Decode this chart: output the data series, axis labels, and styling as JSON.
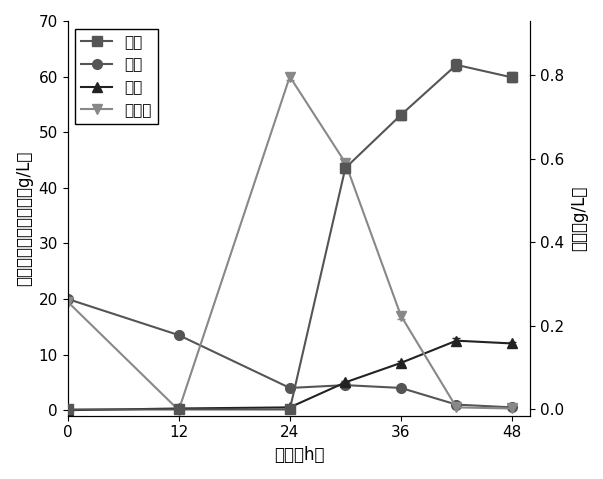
{
  "title": "",
  "xlabel": "时间（h）",
  "ylabel_left": "甘油／乙醇／葡萄糖（g/L）",
  "ylabel_right": "肌醇（g/L）",
  "xlim": [
    0,
    50
  ],
  "ylim_left": [
    -1,
    70
  ],
  "ylim_right": [
    -0.015,
    0.93
  ],
  "yticks_left": [
    0,
    10,
    20,
    30,
    40,
    50,
    60,
    70
  ],
  "yticks_right": [
    0.0,
    0.2,
    0.4,
    0.6,
    0.8
  ],
  "xticks": [
    0,
    12,
    24,
    36,
    48
  ],
  "series": {
    "肌醇": {
      "x": [
        0,
        12,
        24,
        30,
        36,
        42,
        48
      ],
      "y": [
        0.0,
        0.0,
        0.0,
        0.578,
        0.705,
        0.825,
        0.795
      ],
      "yerr": [
        0.0,
        0.0,
        0.0,
        0.012,
        0.012,
        0.015,
        0.012
      ],
      "color": "#555555",
      "marker": "s",
      "markersize": 7,
      "linewidth": 1.5,
      "axis": "right"
    },
    "甘油": {
      "x": [
        0,
        12,
        24,
        30,
        36,
        42,
        48
      ],
      "y": [
        20.0,
        13.5,
        4.0,
        4.5,
        4.0,
        1.0,
        0.5
      ],
      "yerr": [
        0.3,
        0.3,
        0.2,
        0.3,
        0.2,
        0.15,
        0.1
      ],
      "color": "#555555",
      "marker": "o",
      "markersize": 7,
      "linewidth": 1.5,
      "axis": "left"
    },
    "乙醇": {
      "x": [
        0,
        12,
        24,
        30,
        36,
        42,
        48
      ],
      "y": [
        0.0,
        0.3,
        0.5,
        5.0,
        8.5,
        12.5,
        12.0
      ],
      "yerr": [
        0.0,
        0.05,
        0.05,
        0.3,
        0.4,
        0.4,
        0.3
      ],
      "color": "#222222",
      "marker": "^",
      "markersize": 7,
      "linewidth": 1.5,
      "axis": "left"
    },
    "葡萄糖": {
      "x": [
        0,
        12,
        24,
        30,
        36,
        42,
        48
      ],
      "y": [
        19.5,
        0.0,
        60.0,
        44.5,
        17.0,
        0.5,
        0.3
      ],
      "yerr": [
        0.3,
        0.0,
        0.6,
        0.6,
        0.6,
        0.1,
        0.1
      ],
      "color": "#888888",
      "marker": "v",
      "markersize": 7,
      "linewidth": 1.5,
      "axis": "left"
    }
  },
  "legend_order": [
    "肌醇",
    "甘油",
    "乙醇",
    "葡萄糖"
  ],
  "background_color": "#ffffff",
  "font_size": 12,
  "tick_font_size": 11
}
